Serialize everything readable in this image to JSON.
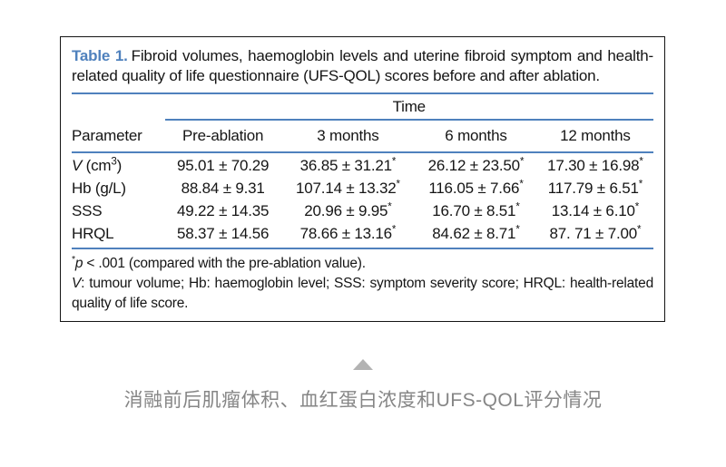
{
  "figure": {
    "caption_label": "Table 1.",
    "caption_text": "Fibroid volumes, haemoglobin levels and uterine fibroid symptom and health-related quality of life questionnaire (UFS-QOL) scores before and after ablation.",
    "table": {
      "spanner": "Time",
      "headers": [
        "Parameter",
        "Pre-ablation",
        "3 months",
        "6 months",
        "12 months"
      ],
      "rows": [
        {
          "param": [
            {
              "t": "V",
              "i": true
            },
            {
              "t": " (cm"
            },
            {
              "t": "3",
              "sup": true
            },
            {
              "t": ")"
            }
          ],
          "values": [
            "95.01 ± 70.29",
            "36.85 ± 31.21*",
            "26.12 ± 23.50*",
            "17.30 ± 16.98*"
          ]
        },
        {
          "param": [
            {
              "t": "Hb (g/L)"
            }
          ],
          "values": [
            "88.84 ± 9.31",
            "107.14 ± 13.32*",
            "116.05 ± 7.66*",
            "117.79 ± 6.51*"
          ]
        },
        {
          "param": [
            {
              "t": "SSS"
            }
          ],
          "values": [
            "49.22 ± 14.35",
            "20.96 ± 9.95*",
            "16.70 ± 8.51*",
            "13.14 ± 6.10*"
          ]
        },
        {
          "param": [
            {
              "t": "HRQL"
            }
          ],
          "values": [
            "58.37 ± 14.56",
            "78.66 ± 13.16*",
            "84.62 ± 8.71*",
            "87. 71 ± 7.00*"
          ]
        }
      ]
    },
    "footnotes": [
      [
        {
          "t": "*",
          "sup": true
        },
        {
          "t": "p",
          "i": true
        },
        {
          "t": " < .001 (compared with the pre-ablation value)."
        }
      ],
      [
        {
          "t": "V",
          "i": true
        },
        {
          "t": ": tumour volume; Hb: haemoglobin level; SSS: symptom severity score; HRQL: health-related quality of life score."
        }
      ]
    ]
  },
  "collapse_icon": "triangle-up",
  "translation": {
    "caption": "消融前后肌瘤体积、血红蛋白浓度和UFS-QOL评分情况"
  },
  "colors": {
    "accent_blue": "#4f81bd",
    "border_black": "#141414",
    "text": "#151515",
    "caption_gray": "#868686",
    "triangle_gray": "#b3b3b3"
  }
}
